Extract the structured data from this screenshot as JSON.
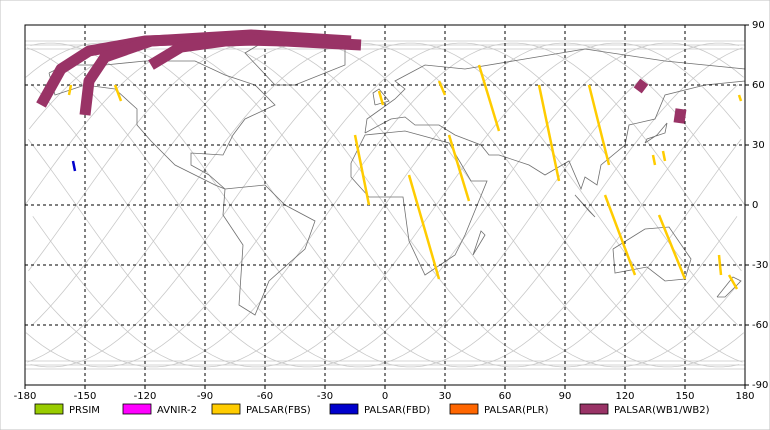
{
  "chart_data": {
    "type": "map",
    "xlim": [
      -180,
      180
    ],
    "ylim": [
      -90,
      90
    ],
    "xticks": [
      -180,
      -150,
      -120,
      -90,
      -60,
      -30,
      0,
      30,
      60,
      90,
      120,
      150,
      180
    ],
    "yticks": [
      -90,
      -60,
      -30,
      0,
      30,
      60,
      90
    ],
    "grid": true,
    "series": [
      {
        "name": "PRSIM",
        "color": "#99cc00",
        "swaths": []
      },
      {
        "name": "AVNIR-2",
        "color": "#ff00ff",
        "swaths": []
      },
      {
        "name": "PALSAR(FBS)",
        "color": "#ffcc00",
        "swaths": [
          {
            "lon": [
              47,
              57
            ],
            "lat": [
              70,
              37
            ]
          },
          {
            "lon": [
              77,
              87
            ],
            "lat": [
              60,
              12
            ]
          },
          {
            "lon": [
              102,
              112
            ],
            "lat": [
              60,
              20
            ]
          },
          {
            "lon": [
              32,
              42
            ],
            "lat": [
              35,
              2
            ]
          },
          {
            "lon": [
              12,
              27
            ],
            "lat": [
              15,
              -37
            ]
          },
          {
            "lon": [
              -15,
              -8
            ],
            "lat": [
              35,
              0
            ]
          },
          {
            "lon": [
              110,
              125
            ],
            "lat": [
              5,
              -35
            ]
          },
          {
            "lon": [
              137,
              150
            ],
            "lat": [
              -5,
              -37
            ]
          },
          {
            "lon": [
              -3,
              -1
            ],
            "lat": [
              57,
              50
            ]
          },
          {
            "lon": [
              27,
              30
            ],
            "lat": [
              62,
              55
            ]
          },
          {
            "lon": [
              -135,
              -132
            ],
            "lat": [
              60,
              52
            ]
          },
          {
            "lon": [
              -157,
              -158
            ],
            "lat": [
              60,
              55
            ]
          },
          {
            "lon": [
              172,
              176
            ],
            "lat": [
              -35,
              -42
            ]
          },
          {
            "lon": [
              177,
              178
            ],
            "lat": [
              55,
              52
            ]
          },
          {
            "lon": [
              139,
              140
            ],
            "lat": [
              27,
              22
            ]
          },
          {
            "lon": [
              167,
              168
            ],
            "lat": [
              -25,
              -35
            ]
          },
          {
            "lon": [
              134,
              135
            ],
            "lat": [
              25,
              20
            ]
          }
        ]
      },
      {
        "name": "PALSAR(FBD)",
        "color": "#0000cc",
        "swaths": [
          {
            "lon": [
              -156,
              -155
            ],
            "lat": [
              22,
              17
            ]
          }
        ]
      },
      {
        "name": "PALSAR(PLR)",
        "color": "#ff6600",
        "swaths": []
      },
      {
        "name": "PALSAR(WB1/WB2)",
        "color": "#993366",
        "swaths": [
          {
            "lon": [
              -172,
              -162,
              -148,
              -120,
              -90,
              -50,
              -12
            ],
            "lat": [
              50,
              68,
              77,
              82,
              83,
              82,
              80
            ]
          },
          {
            "lon": [
              -150,
              -148,
              -140,
              -117,
              -67,
              -17
            ],
            "lat": [
              45,
              62,
              74,
              82,
              85,
              82
            ]
          },
          {
            "lon": [
              -117,
              -102,
              -80,
              -50
            ],
            "lat": [
              70,
              79,
              82,
              83
            ]
          },
          {
            "lon": [
              126,
              130
            ],
            "lat": [
              61,
              58
            ]
          },
          {
            "lon": [
              148,
              147
            ],
            "lat": [
              48,
              41
            ]
          }
        ]
      }
    ]
  }
}
